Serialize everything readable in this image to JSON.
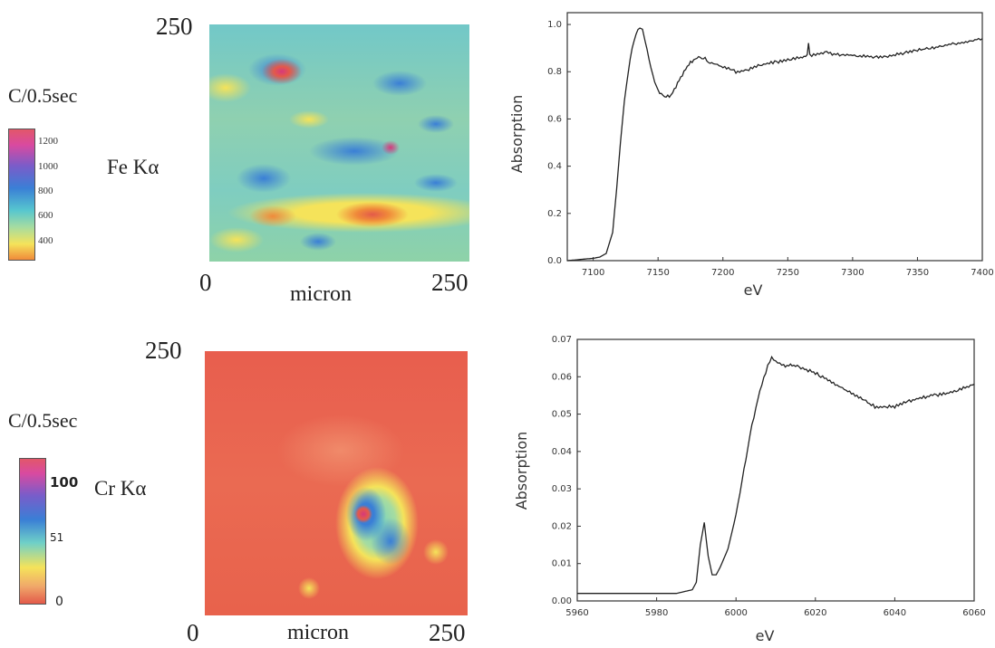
{
  "chart_data": [
    {
      "type": "heatmap",
      "id": "fe-map",
      "element_label": "Fe Kα",
      "colorbar_title": "C/0.5sec",
      "colorbar_ticks": [
        "1200",
        "1000",
        "800",
        "600",
        "400"
      ],
      "colorbar_range": [
        400,
        1200
      ],
      "y_top_label": "250",
      "x_min_label": "0",
      "x_max_label": "250",
      "xlabel": "micron",
      "x_range": [
        0,
        250
      ],
      "y_range": [
        0,
        250
      ],
      "colors": [
        "#e0534f",
        "#f08a3a",
        "#f5e35a",
        "#9fd07f",
        "#56c6cf",
        "#3a8bd6",
        "#7a5cc9",
        "#d6397b"
      ]
    },
    {
      "type": "heatmap",
      "id": "cr-map",
      "element_label": "Cr Kα",
      "colorbar_title": "C/0.5sec",
      "colorbar_ticks": [
        "100",
        "51",
        "0"
      ],
      "colorbar_range": [
        0,
        100
      ],
      "y_top_label": "250",
      "x_min_label": "0",
      "x_max_label": "250",
      "xlabel": "micron",
      "x_range": [
        0,
        250
      ],
      "y_range": [
        0,
        250
      ],
      "colors": [
        "#e35a4a",
        "#f0a86a",
        "#f5e35a",
        "#6fd0c8",
        "#3a8bd6",
        "#7a5cc9",
        "#d6397b"
      ]
    },
    {
      "type": "line",
      "id": "fe-xanes",
      "xlabel": "eV",
      "ylabel": "Absorption",
      "xlim": [
        7080,
        7400
      ],
      "ylim": [
        0,
        1.05
      ],
      "xticks": [
        "7100",
        "7150",
        "7200",
        "7250",
        "7300",
        "7350",
        "7400"
      ],
      "yticks": [
        "0.0",
        "0.2",
        "0.4",
        "0.6",
        "0.8",
        "1.0"
      ],
      "x": [
        7080,
        7090,
        7100,
        7105,
        7110,
        7115,
        7118,
        7121,
        7124,
        7127,
        7130,
        7133,
        7136,
        7138,
        7140,
        7143,
        7146,
        7150,
        7155,
        7160,
        7165,
        7170,
        7175,
        7180,
        7185,
        7190,
        7200,
        7210,
        7220,
        7230,
        7240,
        7250,
        7260,
        7265,
        7266,
        7267,
        7270,
        7280,
        7290,
        7300,
        7320,
        7340,
        7360,
        7380,
        7400
      ],
      "y": [
        0.0,
        0.005,
        0.01,
        0.015,
        0.03,
        0.12,
        0.3,
        0.5,
        0.68,
        0.8,
        0.9,
        0.96,
        0.99,
        0.98,
        0.93,
        0.85,
        0.78,
        0.72,
        0.69,
        0.7,
        0.75,
        0.8,
        0.84,
        0.86,
        0.86,
        0.84,
        0.82,
        0.8,
        0.81,
        0.83,
        0.84,
        0.85,
        0.86,
        0.87,
        0.92,
        0.87,
        0.87,
        0.88,
        0.87,
        0.87,
        0.86,
        0.88,
        0.9,
        0.92,
        0.94
      ]
    },
    {
      "type": "line",
      "id": "cr-xanes",
      "xlabel": "eV",
      "ylabel": "Absorption",
      "xlim": [
        5960,
        6060
      ],
      "ylim": [
        0,
        0.07
      ],
      "xticks": [
        "5960",
        "5980",
        "6000",
        "6020",
        "6040",
        "6060"
      ],
      "yticks": [
        "0.00",
        "0.01",
        "0.02",
        "0.03",
        "0.04",
        "0.05",
        "0.06",
        "0.07"
      ],
      "x": [
        5960,
        5965,
        5970,
        5975,
        5980,
        5985,
        5989,
        5990,
        5991,
        5992,
        5993,
        5994,
        5995,
        5996,
        5998,
        6000,
        6002,
        6004,
        6006,
        6008,
        6009,
        6010,
        6012,
        6015,
        6020,
        6025,
        6030,
        6035,
        6040,
        6045,
        6050,
        6055,
        6060
      ],
      "y": [
        0.002,
        0.002,
        0.002,
        0.002,
        0.002,
        0.002,
        0.003,
        0.005,
        0.015,
        0.021,
        0.012,
        0.007,
        0.007,
        0.009,
        0.014,
        0.023,
        0.035,
        0.047,
        0.056,
        0.063,
        0.065,
        0.064,
        0.063,
        0.063,
        0.061,
        0.058,
        0.055,
        0.052,
        0.052,
        0.054,
        0.055,
        0.056,
        0.058
      ]
    }
  ]
}
